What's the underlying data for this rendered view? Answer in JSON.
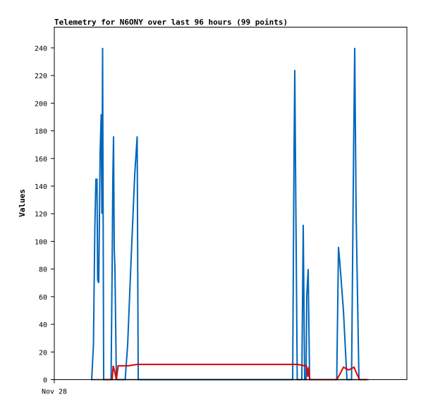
{
  "chart_data": {
    "type": "line",
    "title": "Telemetry for N6ONY over last 96 hours (99 points)",
    "xlabel": "",
    "ylabel": "Values",
    "x_tick_labels": [
      {
        "x": 0,
        "label": "Nov 28"
      }
    ],
    "xlim": [
      0,
      100
    ],
    "ylim": [
      0,
      255
    ],
    "yticks": [
      0,
      20,
      40,
      60,
      80,
      100,
      120,
      140,
      160,
      180,
      200,
      220,
      240
    ],
    "grid": false,
    "legend": "none",
    "series": [
      {
        "color": "#0066bb",
        "points": [
          [
            10.6,
            0
          ],
          [
            11.1,
            25
          ],
          [
            11.5,
            110
          ],
          [
            11.8,
            145
          ],
          [
            12.1,
            145
          ],
          [
            12.3,
            72
          ],
          [
            12.6,
            70
          ],
          [
            13.0,
            165
          ],
          [
            13.3,
            192
          ],
          [
            13.5,
            120
          ],
          [
            13.7,
            240
          ],
          [
            14.0,
            0
          ],
          [
            16.1,
            0
          ],
          [
            16.4,
            80
          ],
          [
            16.6,
            145
          ],
          [
            16.8,
            176
          ],
          [
            17.0,
            94
          ],
          [
            17.2,
            80
          ],
          [
            17.6,
            0
          ],
          [
            20.1,
            0
          ],
          [
            20.8,
            25
          ],
          [
            21.8,
            88
          ],
          [
            22.8,
            148
          ],
          [
            23.5,
            176
          ],
          [
            23.8,
            0
          ],
          [
            67.6,
            0
          ],
          [
            68.0,
            167
          ],
          [
            68.2,
            224
          ],
          [
            68.5,
            127
          ],
          [
            68.9,
            0
          ],
          [
            70.2,
            0
          ],
          [
            70.6,
            112
          ],
          [
            71.0,
            0
          ],
          [
            71.4,
            0
          ],
          [
            71.6,
            60
          ],
          [
            72.0,
            80
          ],
          [
            72.4,
            0
          ],
          [
            72.9,
            0
          ],
          [
            73.3,
            0
          ],
          [
            80.1,
            0
          ],
          [
            80.6,
            96
          ],
          [
            81.0,
            84
          ],
          [
            82.0,
            50
          ],
          [
            83.0,
            0
          ],
          [
            84.3,
            0
          ],
          [
            84.9,
            170
          ],
          [
            85.2,
            240
          ],
          [
            85.6,
            120
          ],
          [
            86.4,
            0
          ]
        ]
      },
      {
        "color": "#dd0000",
        "points": [
          [
            14.3,
            0
          ],
          [
            15.0,
            0
          ],
          [
            16.4,
            0
          ],
          [
            16.7,
            10
          ],
          [
            17.2,
            5
          ],
          [
            17.6,
            0
          ],
          [
            18.1,
            10
          ],
          [
            19.0,
            10
          ],
          [
            21.0,
            10
          ],
          [
            23.5,
            11
          ],
          [
            40.0,
            11
          ],
          [
            58.0,
            11
          ],
          [
            68.0,
            11
          ],
          [
            69.0,
            11
          ],
          [
            71.0,
            10
          ],
          [
            71.5,
            10
          ],
          [
            71.9,
            2
          ],
          [
            72.1,
            9
          ],
          [
            72.3,
            3
          ],
          [
            72.5,
            0
          ],
          [
            80.1,
            0
          ],
          [
            81.0,
            4
          ],
          [
            82.0,
            9
          ],
          [
            83.5,
            7
          ],
          [
            85.0,
            9
          ],
          [
            86.0,
            3
          ],
          [
            86.6,
            0
          ],
          [
            88.5,
            0
          ]
        ]
      },
      {
        "color": "#000000",
        "points": [
          [
            10.6,
            0
          ],
          [
            89.0,
            0
          ]
        ]
      }
    ]
  }
}
